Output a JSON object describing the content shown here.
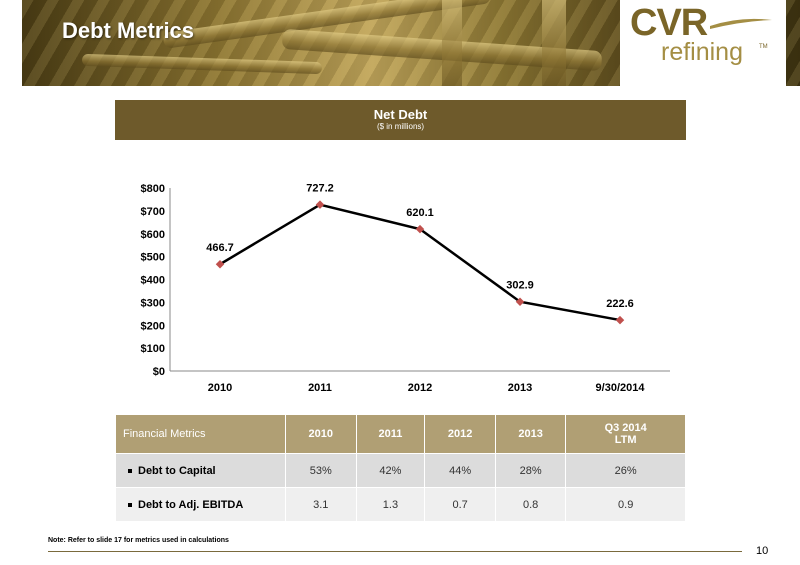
{
  "header": {
    "title": "Debt Metrics",
    "logo_primary": "CVR",
    "logo_secondary": "refining",
    "logo_tm": "TM"
  },
  "chart_data": {
    "type": "line",
    "title": "Net Debt",
    "subtitle": "($ in millions)",
    "categories": [
      "2010",
      "2011",
      "2012",
      "2013",
      "9/30/2014"
    ],
    "values": [
      466.7,
      727.2,
      620.1,
      302.9,
      222.6
    ],
    "data_labels": [
      "466.7",
      "727.2",
      "620.1",
      "302.9",
      "222.6"
    ],
    "y_ticks": [
      "$800",
      "$700",
      "$600",
      "$500",
      "$400",
      "$300",
      "$200",
      "$100",
      "$0"
    ],
    "ylim": [
      0,
      800
    ],
    "grid": false,
    "legend": "none",
    "line_color": "#000000",
    "marker_color": "#c0504d"
  },
  "table": {
    "headers": [
      "Financial Metrics",
      "2010",
      "2011",
      "2012",
      "2013",
      "Q3 2014",
      "LTM"
    ],
    "rows": [
      {
        "label": "Debt to Capital",
        "values": [
          "53%",
          "42%",
          "44%",
          "28%",
          "26%"
        ]
      },
      {
        "label": "Debt to Adj. EBITDA",
        "values": [
          "3.1",
          "1.3",
          "0.7",
          "0.8",
          "0.9"
        ]
      }
    ]
  },
  "footer": {
    "note": "Note: Refer to slide 17 for metrics used in calculations",
    "page_number": "10"
  },
  "colors": {
    "brand_gold": "#7a6528",
    "panel_brown": "#6e5a2b",
    "table_header": "#b09f74"
  }
}
